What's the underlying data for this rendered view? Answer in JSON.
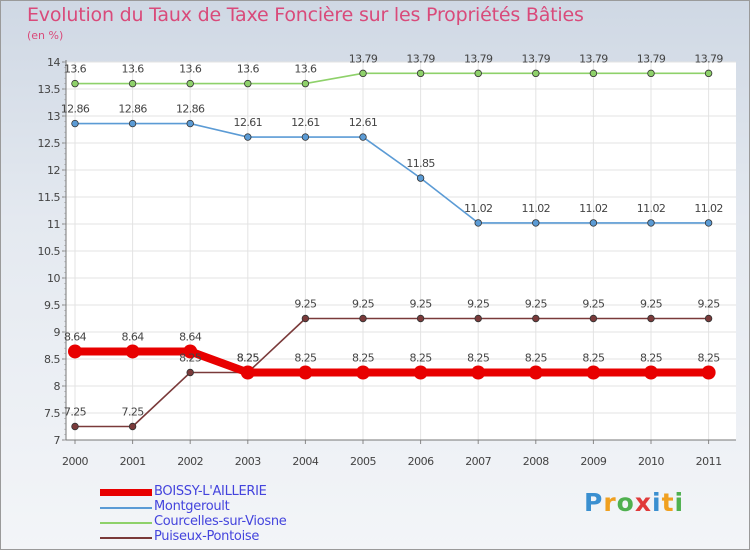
{
  "title": "Evolution du Taux de Taxe Foncière sur les Propriétés Bâties",
  "unit": "(en %)",
  "logo": "Proxiti",
  "chart_data": {
    "type": "line",
    "title": "Evolution du Taux de Taxe Foncière sur les Propriétés Bâties",
    "ylabel": "(en %)",
    "xlabel": "",
    "x": [
      "2000",
      "2001",
      "2002",
      "2003",
      "2004",
      "2005",
      "2006",
      "2007",
      "2008",
      "2009",
      "2010",
      "2011"
    ],
    "yticks": [
      "7",
      "7.5",
      "8",
      "8.5",
      "9",
      "9.5",
      "10",
      "10.5",
      "11",
      "11.5",
      "12",
      "12.5",
      "13",
      "13.5",
      "14"
    ],
    "ylim": [
      7,
      14
    ],
    "series": [
      {
        "name": "BOISSY-L'AILLERIE",
        "color": "#e80000",
        "thick": true,
        "values": [
          8.64,
          8.64,
          8.64,
          8.25,
          8.25,
          8.25,
          8.25,
          8.25,
          8.25,
          8.25,
          8.25,
          8.25
        ],
        "labels": [
          "8.64",
          "8.64",
          "8.64",
          "8.25",
          "8.25",
          "8.25",
          "8.25",
          "8.25",
          "8.25",
          "8.25",
          "8.25",
          "8.25"
        ]
      },
      {
        "name": "Montgeroult",
        "color": "#5b9bd5",
        "thick": false,
        "values": [
          12.86,
          12.86,
          12.86,
          12.61,
          12.61,
          12.61,
          11.85,
          11.02,
          11.02,
          11.02,
          11.02,
          11.02
        ],
        "labels": [
          "12.86",
          "12.86",
          "12.86",
          "12.61",
          "12.61",
          "12.61",
          "11.85",
          "11.02",
          "11.02",
          "11.02",
          "11.02",
          "11.02"
        ]
      },
      {
        "name": "Courcelles-sur-Viosne",
        "color": "#8ed16a",
        "thick": false,
        "values": [
          13.6,
          13.6,
          13.6,
          13.6,
          13.6,
          13.79,
          13.79,
          13.79,
          13.79,
          13.79,
          13.79,
          13.79
        ],
        "labels": [
          "13.6",
          "13.6",
          "13.6",
          "13.6",
          "13.6",
          "13.79",
          "13.79",
          "13.79",
          "13.79",
          "13.79",
          "13.79",
          "13.79"
        ]
      },
      {
        "name": "Puiseux-Pontoise",
        "color": "#7a3a3a",
        "thick": false,
        "values": [
          7.25,
          7.25,
          8.25,
          8.25,
          9.25,
          9.25,
          9.25,
          9.25,
          9.25,
          9.25,
          9.25,
          9.25
        ],
        "labels": [
          "7.25",
          "7.25",
          "8.25",
          "8.25",
          "9.25",
          "9.25",
          "9.25",
          "9.25",
          "9.25",
          "9.25",
          "9.25",
          "9.25"
        ]
      }
    ]
  }
}
